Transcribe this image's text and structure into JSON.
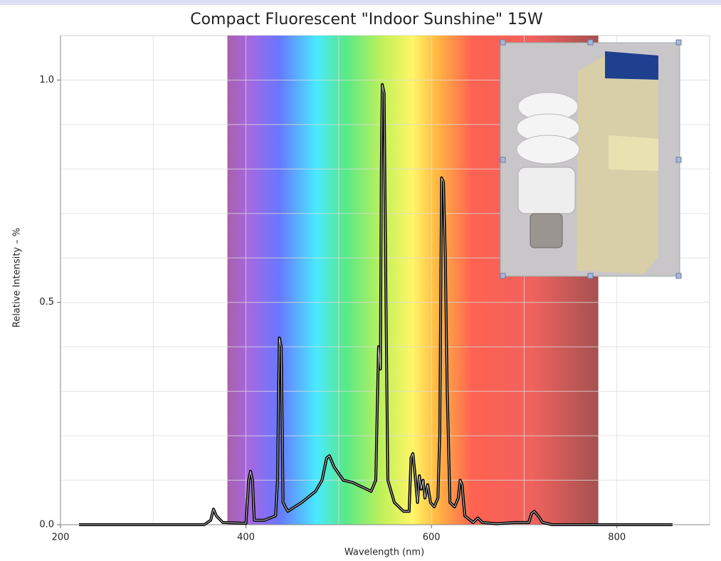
{
  "chart_data": {
    "type": "line",
    "title": "Compact Fluorescent \"Indoor Sunshine\" 15W",
    "xlabel": "Wavelength (nm)",
    "ylabel": "Relative Intensity – %",
    "x": [
      220,
      355,
      362,
      365,
      368,
      375,
      400,
      403,
      405,
      407,
      409,
      420,
      432,
      434,
      436,
      438,
      440,
      445,
      460,
      475,
      482,
      487,
      490,
      495,
      505,
      515,
      525,
      535,
      540,
      543,
      545,
      546,
      547,
      549,
      551,
      553,
      560,
      570,
      576,
      578,
      580,
      582,
      585,
      587,
      589,
      591,
      593,
      596,
      599,
      603,
      607,
      609,
      611,
      613,
      615,
      617,
      620,
      625,
      629,
      631,
      633,
      636,
      645,
      650,
      655,
      670,
      690,
      705,
      708,
      711,
      715,
      720,
      730,
      860
    ],
    "values": [
      0,
      0,
      0.01,
      0.035,
      0.02,
      0.005,
      0.003,
      0.1,
      0.12,
      0.1,
      0.01,
      0.01,
      0.02,
      0.1,
      0.42,
      0.4,
      0.05,
      0.03,
      0.05,
      0.075,
      0.1,
      0.15,
      0.155,
      0.13,
      0.1,
      0.095,
      0.085,
      0.075,
      0.1,
      0.4,
      0.35,
      0.8,
      0.99,
      0.97,
      0.5,
      0.1,
      0.05,
      0.03,
      0.03,
      0.15,
      0.16,
      0.12,
      0.05,
      0.11,
      0.08,
      0.1,
      0.06,
      0.09,
      0.05,
      0.04,
      0.06,
      0.2,
      0.78,
      0.77,
      0.6,
      0.3,
      0.05,
      0.04,
      0.06,
      0.1,
      0.09,
      0.02,
      0.005,
      0.015,
      0.005,
      0.002,
      0.005,
      0.005,
      0.025,
      0.03,
      0.02,
      0.005,
      0,
      0
    ],
    "color": "#000000",
    "xlim": [
      200,
      900
    ],
    "ylim": [
      0,
      1.1
    ],
    "xticks": [
      200,
      400,
      600,
      800
    ],
    "yticks": [
      {
        "value": 0,
        "label": "0.0"
      },
      {
        "value": 0.5,
        "label": "0.5"
      },
      {
        "value": 1,
        "label": "1.0"
      }
    ],
    "x_gridlines": [
      300,
      500,
      700
    ],
    "y_gridlines": [
      0.1,
      0.2,
      0.3,
      0.4,
      0.6,
      0.7,
      0.8,
      0.9
    ],
    "grid": true,
    "spectrum_band": [
      380,
      780
    ]
  }
}
